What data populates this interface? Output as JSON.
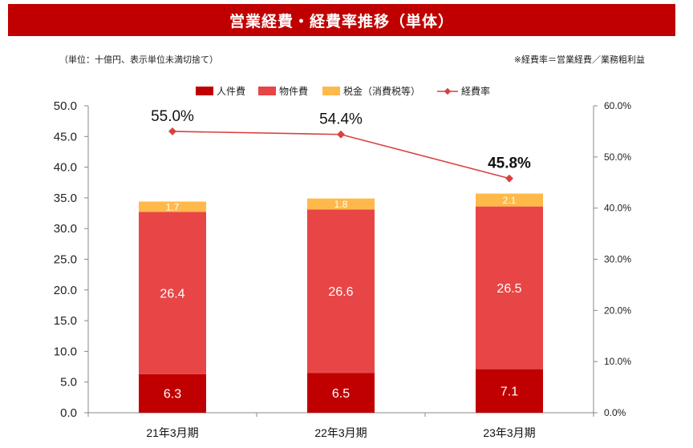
{
  "title": "営業経費・経費率推移（単体）",
  "note_unit": "（単位：十億円、表示単位未満切捨て）",
  "note_ratio": "※経費率＝営業経費／業務粗利益",
  "colors": {
    "title_bg": "#c00000",
    "personnel": "#c00000",
    "property": "#e84646",
    "tax": "#ffb94a",
    "ratio_line": "#d9403e"
  },
  "chart_data": {
    "type": "bar",
    "stacked": true,
    "categories": [
      "21年3月期",
      "22年3月期",
      "23年3月期"
    ],
    "series": [
      {
        "name": "人件費",
        "key": "personnel",
        "values": [
          6.3,
          6.5,
          7.1
        ]
      },
      {
        "name": "物件費",
        "key": "property",
        "values": [
          26.4,
          26.6,
          26.5
        ]
      },
      {
        "name": "税金（消費税等）",
        "key": "tax",
        "values": [
          1.7,
          1.8,
          2.1
        ]
      }
    ],
    "line_series": {
      "name": "経費率",
      "values": [
        55.0,
        54.4,
        45.8
      ],
      "labels": [
        "55.0%",
        "54.4%",
        "45.8%"
      ],
      "axis": "right"
    },
    "ylim_left": [
      0,
      50
    ],
    "ylim_right": [
      0,
      60
    ],
    "left_ticks": [
      "0.0",
      "5.0",
      "10.0",
      "15.0",
      "20.0",
      "25.0",
      "30.0",
      "35.0",
      "40.0",
      "45.0",
      "50.0"
    ],
    "right_ticks": [
      "0.0%",
      "10.0%",
      "20.0%",
      "30.0%",
      "40.0%",
      "50.0%",
      "60.0%"
    ],
    "legend_position": "top",
    "grid": false
  }
}
